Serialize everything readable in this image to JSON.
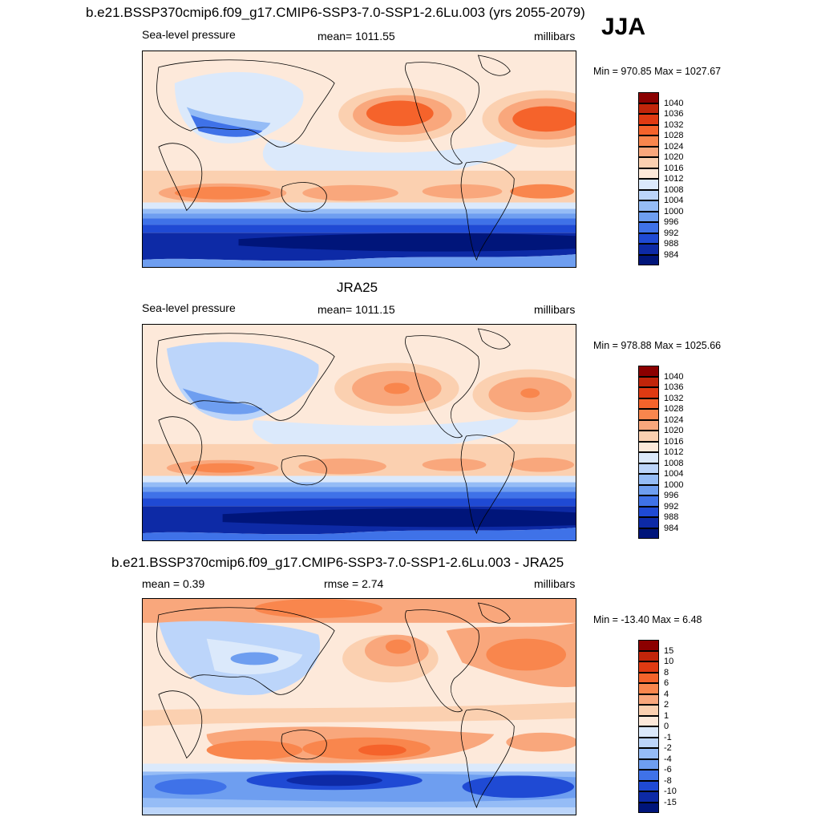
{
  "top_title": "b.e21.BSSP370cmip6.f09_g17.CMIP6-SSP3-7.0-SSP1-2.6Lu.003 (yrs 2055-2079)",
  "season": "JJA",
  "panel1": {
    "left": "Sea-level pressure",
    "center": "mean= 1011.55",
    "right": "millibars",
    "minmax": "Min = 970.85 Max = 1027.67"
  },
  "panel2": {
    "title": "JRA25",
    "left": "Sea-level pressure",
    "center": "mean= 1011.15",
    "right": "millibars",
    "minmax": "Min = 978.88 Max = 1025.66"
  },
  "panel3": {
    "title": "b.e21.BSSP370cmip6.f09_g17.CMIP6-SSP3-7.0-SSP1-2.6Lu.003 - JRA25",
    "left": "mean =   0.39",
    "center": "rmse =   2.74",
    "right": "millibars",
    "minmax": "Min = -13.40 Max =   6.48"
  },
  "colorbar_slp": {
    "labels": [
      "1040",
      "1036",
      "1032",
      "1028",
      "1024",
      "1020",
      "1016",
      "1012",
      "1008",
      "1004",
      "1000",
      "996",
      "992",
      "988",
      "984"
    ],
    "colors": [
      "#8b0000",
      "#c1250a",
      "#e03a12",
      "#f5632b",
      "#f9864d",
      "#f9a77c",
      "#fbd0b0",
      "#fde9da",
      "#dbe9fb",
      "#bcd5fa",
      "#95bcf6",
      "#6e9ef0",
      "#3f72e8",
      "#1f4ad4",
      "#0d2aa6",
      "#00157a"
    ]
  },
  "colorbar_diff": {
    "labels": [
      "15",
      "10",
      "8",
      "6",
      "4",
      "2",
      "1",
      "0",
      "-1",
      "-2",
      "-4",
      "-6",
      "-8",
      "-10",
      "-15"
    ],
    "colors": [
      "#8b0000",
      "#c1250a",
      "#e03a12",
      "#f5632b",
      "#f9864d",
      "#f9a77c",
      "#fbd0b0",
      "#fde9da",
      "#dbe9fb",
      "#bcd5fa",
      "#95bcf6",
      "#6e9ef0",
      "#3f72e8",
      "#1f4ad4",
      "#0d2aa6",
      "#00157a"
    ]
  }
}
